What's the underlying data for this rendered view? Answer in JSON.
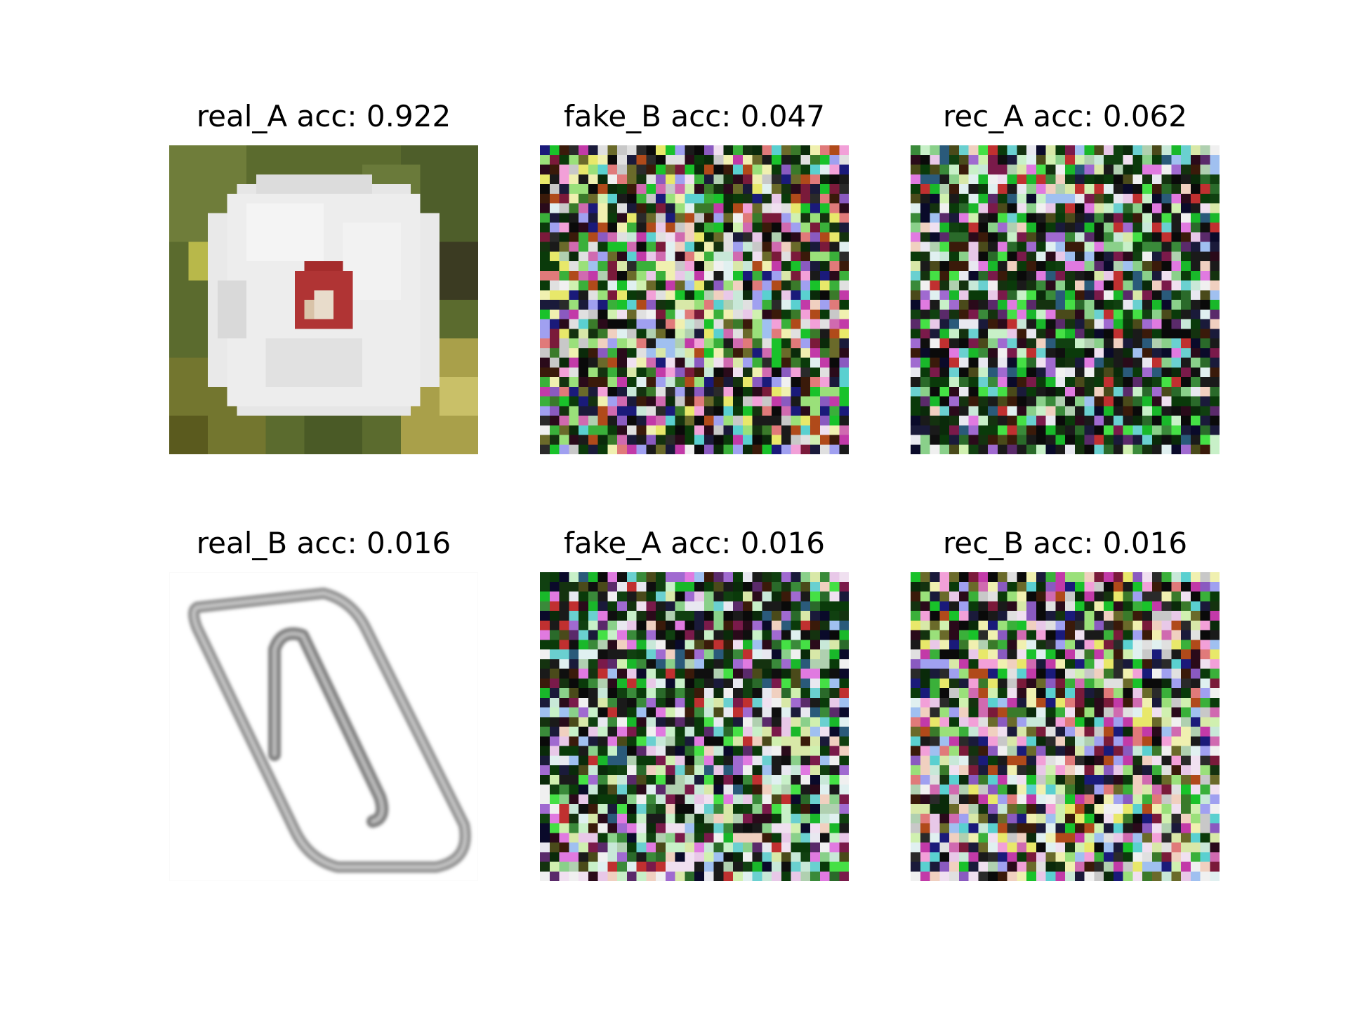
{
  "figure": {
    "panels": [
      {
        "id": "real_A",
        "title": "real_A acc: 0.922",
        "kind": "photo",
        "subject": "white flower with red center on green foliage"
      },
      {
        "id": "fake_B",
        "title": "fake_B acc: 0.047",
        "kind": "noise",
        "palette": "bright"
      },
      {
        "id": "rec_A",
        "title": "rec_A acc: 0.062",
        "kind": "noise",
        "palette": "green-dark"
      },
      {
        "id": "real_B",
        "title": "real_B acc: 0.016",
        "kind": "drawing",
        "subject": "grey paperclip sketch on white"
      },
      {
        "id": "fake_A",
        "title": "fake_A acc: 0.016",
        "kind": "noise",
        "palette": "dark-top-light-bottom"
      },
      {
        "id": "rec_B",
        "title": "rec_B acc: 0.016",
        "kind": "noise",
        "palette": "dark-left-light-bottom"
      }
    ],
    "colors": {
      "background": "#ffffff",
      "text": "#000000"
    }
  }
}
